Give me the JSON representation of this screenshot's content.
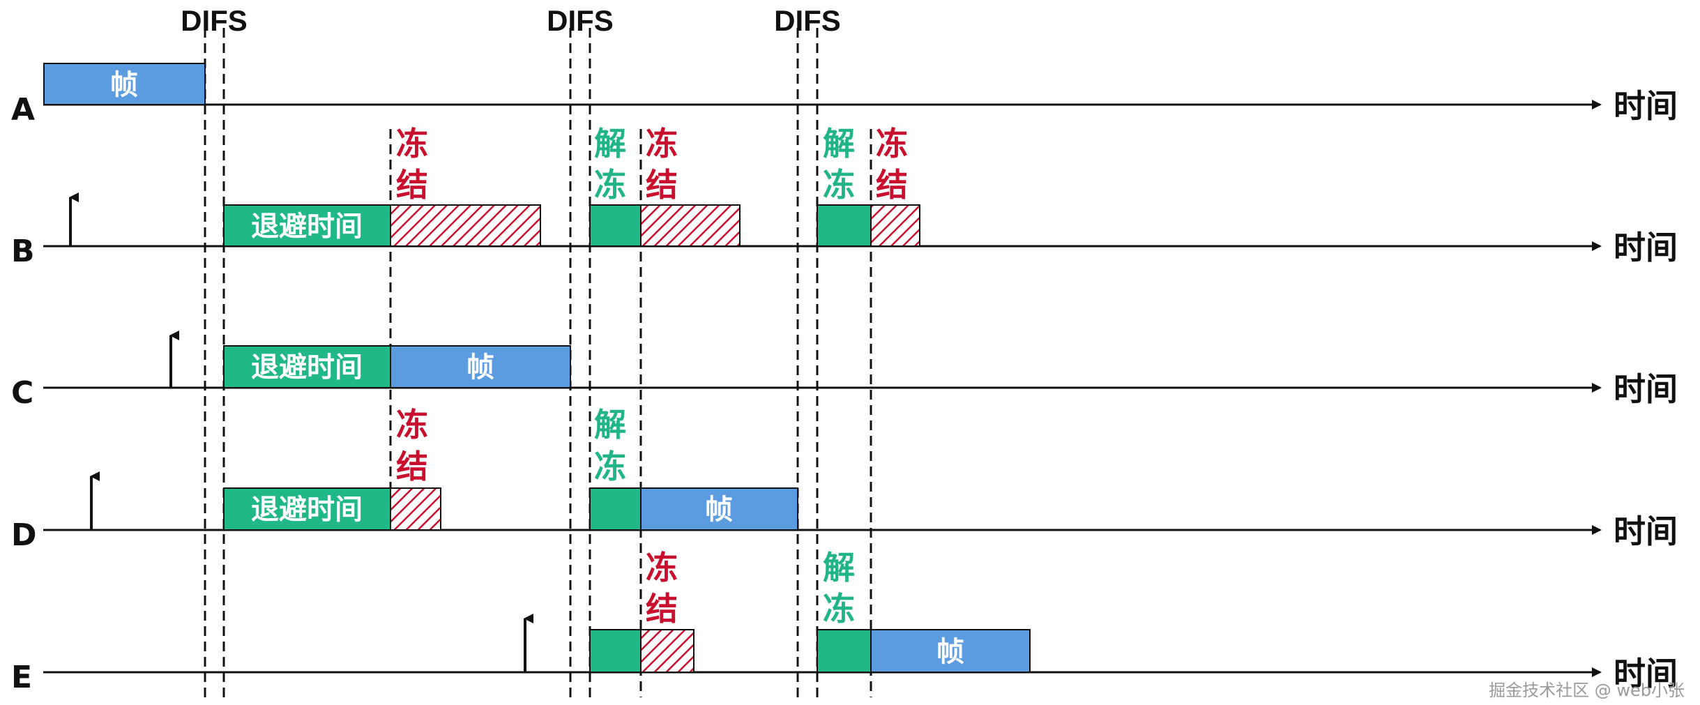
{
  "difs_label": "DIFS",
  "time_label": "时间",
  "rows": [
    "A",
    "B",
    "C",
    "D",
    "E"
  ],
  "labels": {
    "frame": "帧",
    "backoff": "退避时间",
    "freeze_1": "冻",
    "freeze_2": "结",
    "thaw_1": "解",
    "thaw_2": "冻"
  },
  "colors": {
    "frame": "#5b9be0",
    "backoff": "#21b887",
    "freeze_hatch": "#c8102e",
    "freeze_text": "#c8102e",
    "thaw_text": "#20b486",
    "axis": "#111111"
  },
  "watermark": "掘金技术社区 @ web小张"
}
